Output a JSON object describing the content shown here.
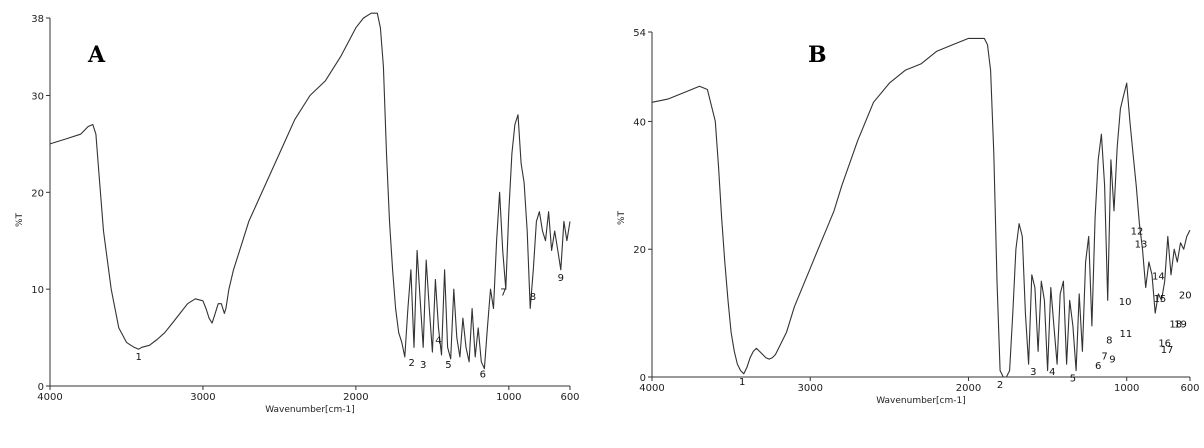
{
  "chart_data": [
    {
      "type": "line",
      "panel_label": "A",
      "xlabel": "Wavenumber[cm-1]",
      "ylabel": "%T",
      "xlim": [
        4000,
        600
      ],
      "ylim": [
        0,
        38
      ],
      "x_ticks": [
        4000,
        3000,
        2000,
        1000,
        600
      ],
      "x_tick_labels": [
        "4000",
        "3000",
        "2000",
        "1000",
        "600"
      ],
      "y_ticks": [
        0,
        10,
        20,
        30,
        38
      ],
      "y_tick_labels": [
        "0",
        "10",
        "20",
        "30",
        "38"
      ],
      "series": [
        {
          "x": [
            4000,
            3900,
            3800,
            3750,
            3720,
            3700,
            3680,
            3650,
            3600,
            3550,
            3500,
            3450,
            3420,
            3400,
            3350,
            3300,
            3250,
            3200,
            3150,
            3100,
            3050,
            3000,
            2980,
            2960,
            2940,
            2920,
            2900,
            2880,
            2860,
            2850,
            2830,
            2800,
            2750,
            2700,
            2600,
            2500,
            2400,
            2300,
            2200,
            2100,
            2000,
            1950,
            1900,
            1860,
            1840,
            1820,
            1800,
            1780,
            1760,
            1740,
            1720,
            1700,
            1680,
            1660,
            1640,
            1620,
            1600,
            1580,
            1560,
            1540,
            1520,
            1500,
            1480,
            1460,
            1440,
            1420,
            1400,
            1380,
            1360,
            1340,
            1320,
            1300,
            1280,
            1260,
            1240,
            1220,
            1200,
            1180,
            1160,
            1140,
            1120,
            1100,
            1080,
            1060,
            1040,
            1020,
            1000,
            980,
            960,
            940,
            920,
            900,
            880,
            860,
            840,
            820,
            800,
            780,
            760,
            740,
            720,
            700,
            680,
            660,
            640,
            620,
            600
          ],
          "y": [
            25,
            25.5,
            26,
            26.8,
            27,
            26,
            22,
            16,
            10,
            6,
            4.5,
            4,
            3.8,
            4,
            4.2,
            4.8,
            5.5,
            6.5,
            7.5,
            8.5,
            9,
            8.8,
            8,
            7,
            6.5,
            7.5,
            8.5,
            8.5,
            7.5,
            8,
            10,
            12,
            14.5,
            17,
            20.5,
            24,
            27.5,
            30,
            31.5,
            34,
            37,
            38,
            38.5,
            38.5,
            37,
            33,
            24,
            17,
            12,
            8,
            5.5,
            4.5,
            3,
            8,
            12,
            4,
            14,
            9,
            4,
            13,
            8,
            3.5,
            11,
            6,
            3.2,
            12,
            4,
            2.8,
            10,
            5,
            3,
            7,
            4,
            2.5,
            8,
            3,
            6,
            2.5,
            1.8,
            6,
            10,
            8,
            15,
            20,
            14,
            10,
            18,
            24,
            27,
            28,
            23,
            21,
            16,
            8,
            12,
            17,
            18,
            16,
            15,
            18,
            14,
            16,
            14,
            12,
            17,
            15,
            17
          ]
        }
      ],
      "peak_labels": [
        {
          "label": "1",
          "x": 3420,
          "y": 3.8
        },
        {
          "label": "2",
          "x": 1635,
          "y": 3.2
        },
        {
          "label": "3",
          "x": 1560,
          "y": 3.0
        },
        {
          "label": "4",
          "x": 1460,
          "y": 5.5
        },
        {
          "label": "5",
          "x": 1395,
          "y": 3.0
        },
        {
          "label": "6",
          "x": 1170,
          "y": 2.0
        },
        {
          "label": "7",
          "x": 1035,
          "y": 10.5
        },
        {
          "label": "8",
          "x": 842,
          "y": 10.0
        },
        {
          "label": "9",
          "x": 660,
          "y": 12.0
        }
      ]
    },
    {
      "type": "line",
      "panel_label": "B",
      "xlabel": "Wavenumber[cm-1]",
      "ylabel": "%T",
      "xlim": [
        4000,
        600
      ],
      "ylim": [
        0,
        54
      ],
      "x_ticks": [
        4000,
        3000,
        2000,
        1000,
        600
      ],
      "x_tick_labels": [
        "4000",
        "3000",
        "2000",
        "1000",
        "600"
      ],
      "y_ticks": [
        0,
        20,
        40,
        54
      ],
      "y_tick_labels": [
        "0",
        "20",
        "40",
        "54"
      ],
      "series": [
        {
          "x": [
            4000,
            3900,
            3800,
            3700,
            3650,
            3600,
            3580,
            3560,
            3540,
            3520,
            3500,
            3480,
            3460,
            3440,
            3420,
            3400,
            3380,
            3360,
            3340,
            3320,
            3300,
            3280,
            3260,
            3240,
            3220,
            3200,
            3150,
            3100,
            3050,
            3000,
            2950,
            2900,
            2850,
            2800,
            2700,
            2600,
            2500,
            2400,
            2300,
            2200,
            2100,
            2000,
            1950,
            1900,
            1880,
            1860,
            1840,
            1820,
            1800,
            1780,
            1760,
            1740,
            1720,
            1700,
            1680,
            1660,
            1640,
            1620,
            1600,
            1580,
            1560,
            1540,
            1520,
            1500,
            1480,
            1460,
            1440,
            1420,
            1400,
            1380,
            1360,
            1340,
            1320,
            1300,
            1280,
            1260,
            1240,
            1220,
            1200,
            1180,
            1160,
            1140,
            1120,
            1100,
            1080,
            1060,
            1040,
            1020,
            1000,
            980,
            960,
            940,
            920,
            900,
            880,
            860,
            840,
            820,
            800,
            780,
            760,
            740,
            720,
            700,
            680,
            660,
            640,
            620,
            600
          ],
          "y": [
            43,
            43.5,
            44.5,
            45.5,
            45,
            40,
            33,
            25,
            18,
            12,
            7,
            4,
            2,
            1,
            0.5,
            1.5,
            3,
            4,
            4.5,
            4,
            3.5,
            3,
            2.8,
            3,
            3.5,
            4.5,
            7,
            11,
            14,
            17,
            20,
            23,
            26,
            30,
            37,
            43,
            46,
            48,
            49,
            51,
            52,
            53,
            53,
            53,
            52,
            48,
            35,
            15,
            1,
            0,
            0,
            1,
            10,
            20,
            24,
            22,
            10,
            2,
            16,
            14,
            4,
            15,
            12,
            1,
            14,
            8,
            2,
            13,
            15,
            2,
            12,
            8,
            1,
            13,
            4,
            18,
            22,
            8,
            25,
            34,
            38,
            30,
            12,
            34,
            26,
            36,
            42,
            44,
            46,
            40,
            35,
            30,
            24,
            20,
            14,
            18,
            16,
            10,
            13,
            12,
            15,
            22,
            16,
            20,
            18,
            21,
            20,
            22,
            23
          ]
        }
      ],
      "peak_labels": [
        {
          "label": "1",
          "x": 3430,
          "y": 0.5
        },
        {
          "label": "2",
          "x": 1800,
          "y": 0.0
        },
        {
          "label": "3",
          "x": 1590,
          "y": 2.0
        },
        {
          "label": "4",
          "x": 1470,
          "y": 2.0
        },
        {
          "label": "5",
          "x": 1340,
          "y": 1.0
        },
        {
          "label": "6",
          "x": 1180,
          "y": 3.0
        },
        {
          "label": "7",
          "x": 1140,
          "y": 4.5
        },
        {
          "label": "8",
          "x": 1110,
          "y": 7.0
        },
        {
          "label": "9",
          "x": 1090,
          "y": 4.0
        },
        {
          "label": "10",
          "x": 1010,
          "y": 13.0
        },
        {
          "label": "11",
          "x": 1005,
          "y": 8.0
        },
        {
          "label": "12",
          "x": 935,
          "y": 24.0
        },
        {
          "label": "13",
          "x": 910,
          "y": 22.0
        },
        {
          "label": "14",
          "x": 800,
          "y": 17.0
        },
        {
          "label": "15",
          "x": 790,
          "y": 13.5
        },
        {
          "label": "16",
          "x": 760,
          "y": 6.5
        },
        {
          "label": "17",
          "x": 745,
          "y": 5.5
        },
        {
          "label": "18",
          "x": 690,
          "y": 9.5
        },
        {
          "label": "19",
          "x": 660,
          "y": 9.5
        },
        {
          "label": "20",
          "x": 630,
          "y": 14.0
        }
      ]
    }
  ]
}
